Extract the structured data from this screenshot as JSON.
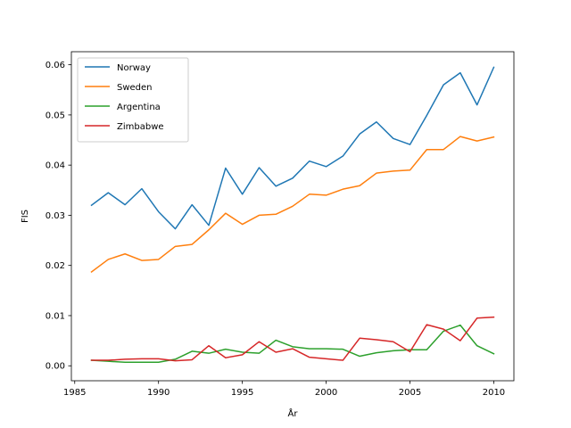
{
  "chart_data": {
    "type": "line",
    "title": "",
    "xlabel": "År",
    "ylabel": "FIS",
    "xlim": [
      1984.8,
      2011.2
    ],
    "ylim": [
      -0.00298,
      0.0626
    ],
    "xticks": [
      1985,
      1990,
      1995,
      2000,
      2005,
      2010
    ],
    "xtick_labels": [
      "1985",
      "1990",
      "1995",
      "2000",
      "2005",
      "2010"
    ],
    "yticks": [
      0.0,
      0.01,
      0.02,
      0.03,
      0.04,
      0.05,
      0.06
    ],
    "ytick_labels": [
      "0.00",
      "0.01",
      "0.02",
      "0.03",
      "0.04",
      "0.05",
      "0.06"
    ],
    "grid": false,
    "legend_position": "top-left",
    "x": [
      1986,
      1987,
      1988,
      1989,
      1990,
      1991,
      1992,
      1993,
      1994,
      1995,
      1996,
      1997,
      1998,
      1999,
      2000,
      2001,
      2002,
      2003,
      2004,
      2005,
      2006,
      2007,
      2008,
      2009,
      2010
    ],
    "series": [
      {
        "name": "Norway",
        "color": "#1f77b4",
        "values": [
          0.032,
          0.0345,
          0.0321,
          0.0353,
          0.0307,
          0.0273,
          0.0321,
          0.028,
          0.0394,
          0.0342,
          0.0395,
          0.0358,
          0.0374,
          0.0408,
          0.0397,
          0.0418,
          0.0462,
          0.0486,
          0.0453,
          0.0441,
          0.0499,
          0.056,
          0.0584,
          0.052,
          0.0595
        ]
      },
      {
        "name": "Sweden",
        "color": "#ff7f0e",
        "values": [
          0.0187,
          0.0212,
          0.0223,
          0.021,
          0.0212,
          0.0238,
          0.0242,
          0.0271,
          0.0304,
          0.0282,
          0.03,
          0.0302,
          0.0318,
          0.0342,
          0.034,
          0.0352,
          0.0359,
          0.0384,
          0.0388,
          0.039,
          0.0431,
          0.0431,
          0.0457,
          0.0448,
          0.0456
        ]
      },
      {
        "name": "Argentina",
        "color": "#2ca02c",
        "values": [
          0.0011,
          0.0009,
          0.0007,
          0.0007,
          0.0007,
          0.0013,
          0.0029,
          0.0025,
          0.0033,
          0.0027,
          0.0025,
          0.0051,
          0.0038,
          0.0034,
          0.0034,
          0.0033,
          0.0019,
          0.0026,
          0.003,
          0.0032,
          0.0032,
          0.0069,
          0.0081,
          0.004,
          0.0024
        ]
      },
      {
        "name": "Zimbabwe",
        "color": "#d62728",
        "values": [
          0.0011,
          0.0011,
          0.0013,
          0.0014,
          0.0014,
          0.001,
          0.0012,
          0.004,
          0.0016,
          0.0022,
          0.0048,
          0.0027,
          0.0034,
          0.0017,
          0.0014,
          0.0011,
          0.0055,
          0.0052,
          0.0048,
          0.0028,
          0.0082,
          0.0073,
          0.005,
          0.0095,
          0.0097
        ]
      }
    ]
  }
}
